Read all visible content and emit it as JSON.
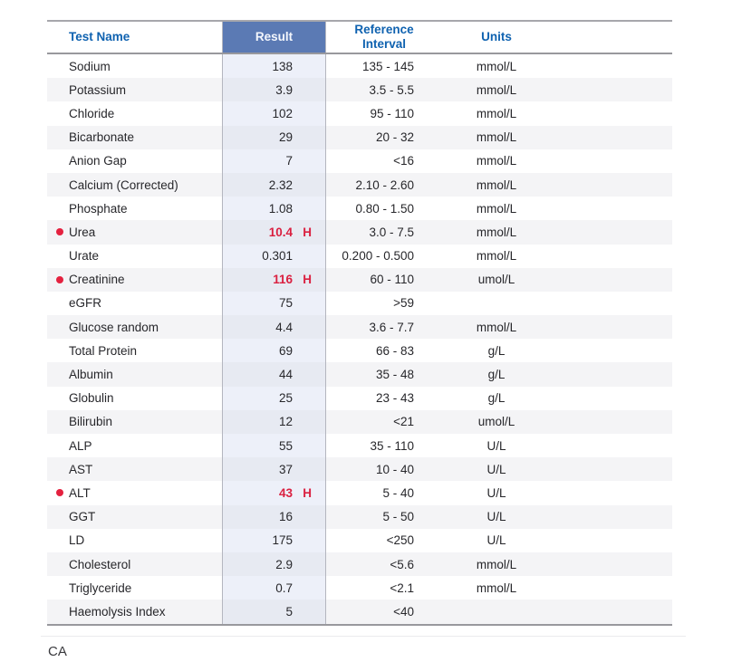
{
  "header": {
    "test_name": "Test Name",
    "result": "Result",
    "reference_interval": "Reference Interval",
    "units": "Units"
  },
  "rows": [
    {
      "name": "Sodium",
      "result": "138",
      "flag": "",
      "reference": "135 - 145",
      "units": "mmol/L",
      "abnormal": false
    },
    {
      "name": "Potassium",
      "result": "3.9",
      "flag": "",
      "reference": "3.5 - 5.5",
      "units": "mmol/L",
      "abnormal": false
    },
    {
      "name": "Chloride",
      "result": "102",
      "flag": "",
      "reference": "95 - 110",
      "units": "mmol/L",
      "abnormal": false
    },
    {
      "name": "Bicarbonate",
      "result": "29",
      "flag": "",
      "reference": "20 - 32",
      "units": "mmol/L",
      "abnormal": false
    },
    {
      "name": "Anion Gap",
      "result": "7",
      "flag": "",
      "reference": "<16",
      "units": "mmol/L",
      "abnormal": false
    },
    {
      "name": "Calcium (Corrected)",
      "result": "2.32",
      "flag": "",
      "reference": "2.10 - 2.60",
      "units": "mmol/L",
      "abnormal": false
    },
    {
      "name": "Phosphate",
      "result": "1.08",
      "flag": "",
      "reference": "0.80 - 1.50",
      "units": "mmol/L",
      "abnormal": false
    },
    {
      "name": "Urea",
      "result": "10.4",
      "flag": "H",
      "reference": "3.0 - 7.5",
      "units": "mmol/L",
      "abnormal": true
    },
    {
      "name": "Urate",
      "result": "0.301",
      "flag": "",
      "reference": "0.200 - 0.500",
      "units": "mmol/L",
      "abnormal": false
    },
    {
      "name": "Creatinine",
      "result": "116",
      "flag": "H",
      "reference": "60 - 110",
      "units": "umol/L",
      "abnormal": true
    },
    {
      "name": "eGFR",
      "result": "75",
      "flag": "",
      "reference": ">59",
      "units": "",
      "abnormal": false
    },
    {
      "name": "Glucose random",
      "result": "4.4",
      "flag": "",
      "reference": "3.6 - 7.7",
      "units": "mmol/L",
      "abnormal": false
    },
    {
      "name": "Total Protein",
      "result": "69",
      "flag": "",
      "reference": "66 - 83",
      "units": "g/L",
      "abnormal": false
    },
    {
      "name": "Albumin",
      "result": "44",
      "flag": "",
      "reference": "35 - 48",
      "units": "g/L",
      "abnormal": false
    },
    {
      "name": "Globulin",
      "result": "25",
      "flag": "",
      "reference": "23 - 43",
      "units": "g/L",
      "abnormal": false
    },
    {
      "name": "Bilirubin",
      "result": "12",
      "flag": "",
      "reference": "<21",
      "units": "umol/L",
      "abnormal": false
    },
    {
      "name": "ALP",
      "result": "55",
      "flag": "",
      "reference": "35 - 110",
      "units": "U/L",
      "abnormal": false
    },
    {
      "name": "AST",
      "result": "37",
      "flag": "",
      "reference": "10 - 40",
      "units": "U/L",
      "abnormal": false
    },
    {
      "name": "ALT",
      "result": "43",
      "flag": "H",
      "reference": "5 - 40",
      "units": "U/L",
      "abnormal": true
    },
    {
      "name": "GGT",
      "result": "16",
      "flag": "",
      "reference": "5 - 50",
      "units": "U/L",
      "abnormal": false
    },
    {
      "name": "LD",
      "result": "175",
      "flag": "",
      "reference": "<250",
      "units": "U/L",
      "abnormal": false
    },
    {
      "name": "Cholesterol",
      "result": "2.9",
      "flag": "",
      "reference": "<5.6",
      "units": "mmol/L",
      "abnormal": false
    },
    {
      "name": "Triglyceride",
      "result": "0.7",
      "flag": "",
      "reference": "<2.1",
      "units": "mmol/L",
      "abnormal": false
    },
    {
      "name": "Haemolysis Index",
      "result": "5",
      "flag": "",
      "reference": "<40",
      "units": "",
      "abnormal": false
    }
  ],
  "footer": {
    "note": "CA"
  },
  "colors": {
    "header_text_blue": "#0f62b0",
    "result_header_bg": "#5b7ab4",
    "result_header_text": "#f3f6fc",
    "abnormal_red": "#da2040",
    "stripe_gray": "#f4f4f6",
    "result_cell_bg": "#edf0f9",
    "border_dark": "#98989d",
    "border_vertical": "#b4b6bf"
  }
}
